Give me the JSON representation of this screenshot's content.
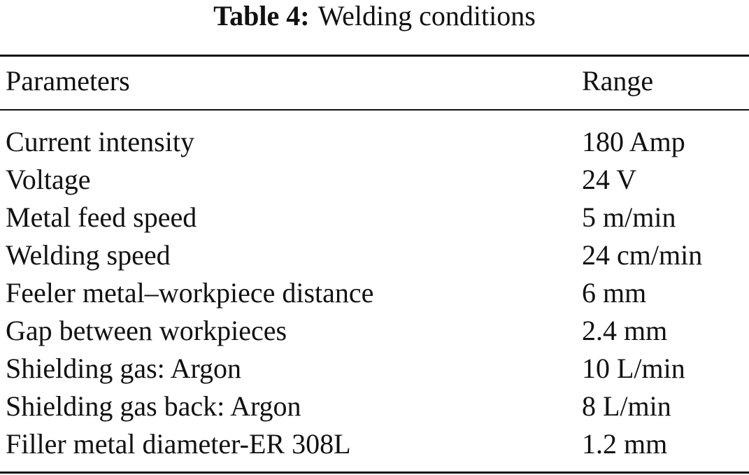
{
  "table": {
    "label": "Table 4:",
    "caption": "Welding conditions",
    "header": [
      "Parameters",
      "Range"
    ],
    "rows": [
      [
        "Current intensity",
        "180 Amp"
      ],
      [
        "Voltage",
        "24 V"
      ],
      [
        "Metal feed speed",
        "5 m/min"
      ],
      [
        "Welding speed",
        "24 cm/min"
      ],
      [
        "Feeler metal–workpiece distance",
        "6 mm"
      ],
      [
        "Gap between workpieces",
        "2.4 mm"
      ],
      [
        "Shielding gas: Argon",
        "10 L/min"
      ],
      [
        "Shielding gas back: Argon",
        "8 L/min"
      ],
      [
        "Filler metal diameter-ER 308L",
        "1.2 mm"
      ]
    ]
  }
}
